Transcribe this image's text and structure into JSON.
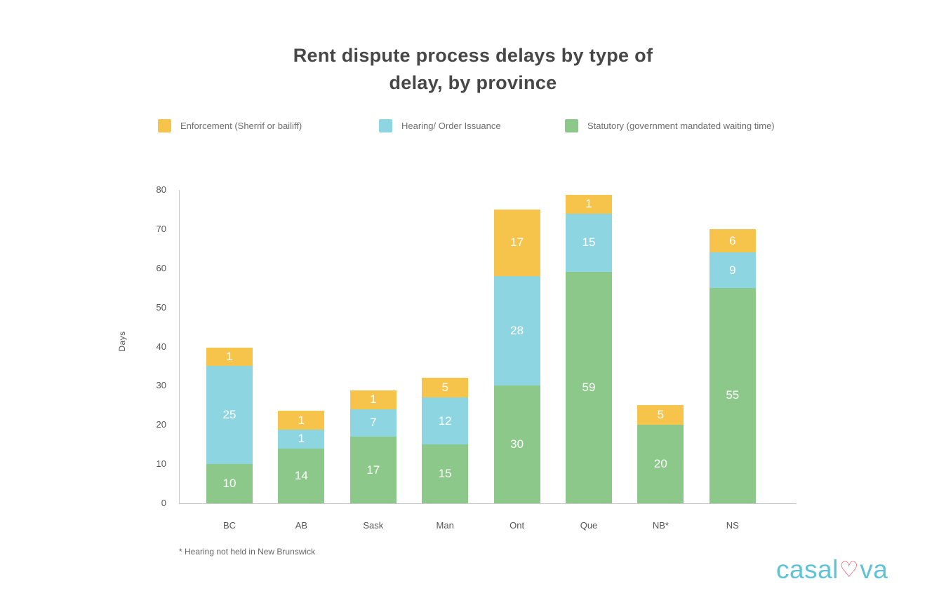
{
  "title": {
    "line1": "Rent dispute process delays by type of",
    "line2": "delay, by province"
  },
  "footnote": "* Hearing not held in New Brunswick",
  "logo": {
    "part1": "casal",
    "heart": "♡",
    "part2": "va",
    "text_color": "#5fc3d7",
    "heart_color": "#ee5e74"
  },
  "chart_data": {
    "type": "bar",
    "stacked": true,
    "title": "Rent dispute process delays by type of delay, by province",
    "categories": [
      "BC",
      "AB",
      "Sask",
      "Man",
      "Ont",
      "Que",
      "NB*",
      "NS"
    ],
    "series": [
      {
        "name": "Enforcement (Sherrif or bailiff)",
        "color": "#f6c44a",
        "values": [
          1,
          1,
          1,
          5,
          17,
          1,
          5,
          6
        ]
      },
      {
        "name": "Hearing/ Order Issuance",
        "color": "#8ed5e2",
        "values": [
          25,
          1,
          7,
          12,
          28,
          15,
          null,
          9
        ]
      },
      {
        "name": "Statutory (government mandated waiting time)",
        "color": "#8bc889",
        "values": [
          10,
          14,
          17,
          15,
          30,
          59,
          20,
          55
        ]
      }
    ],
    "xlabel": "",
    "ylabel": "Days",
    "ylim": [
      0,
      80
    ],
    "yticks": [
      0,
      10,
      20,
      30,
      40,
      50,
      60,
      70,
      80
    ],
    "legend_position": "top",
    "grid": false
  }
}
